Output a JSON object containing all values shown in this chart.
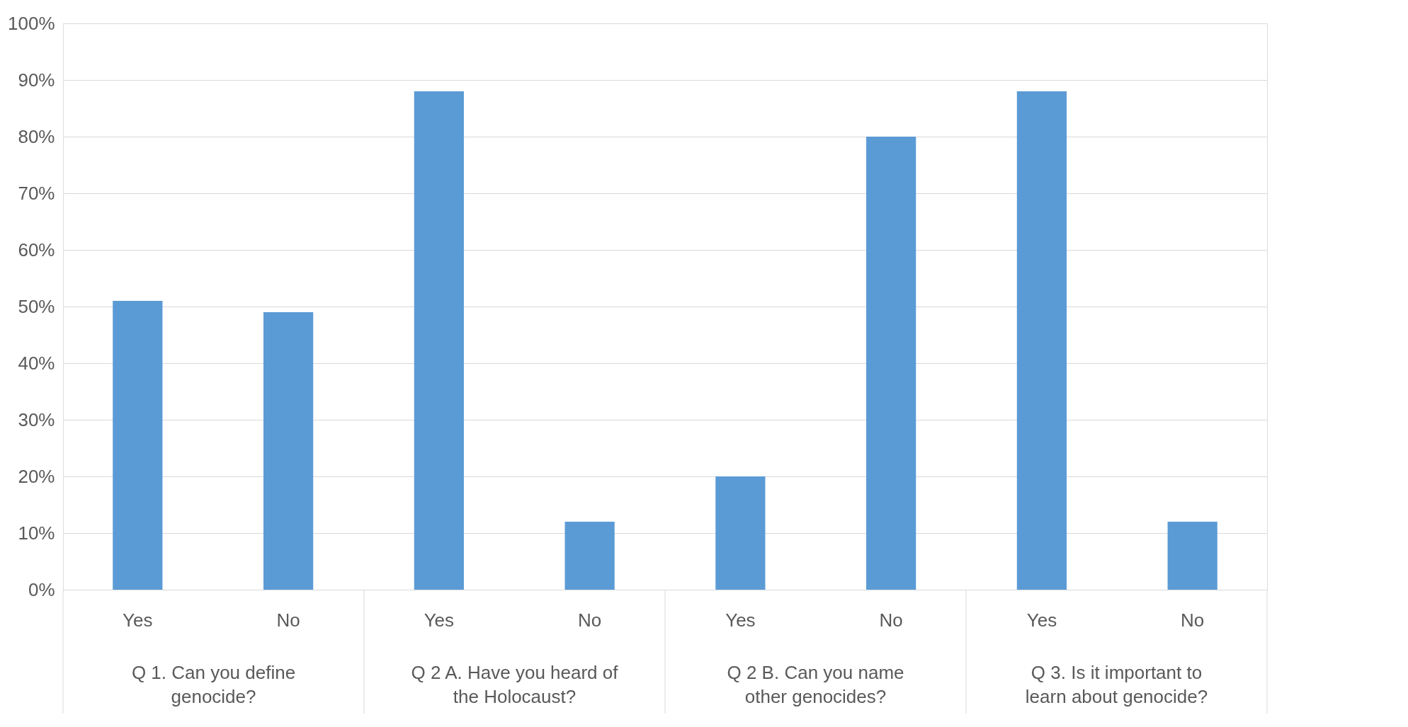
{
  "chart_data": {
    "type": "bar",
    "categories": [
      "Yes",
      "No",
      "Yes",
      "No",
      "Yes",
      "No",
      "Yes",
      "No"
    ],
    "values": [
      51,
      49,
      88,
      12,
      20,
      80,
      88,
      12
    ],
    "color": "#5b9bd5",
    "ylim": [
      0,
      100
    ],
    "yticks": [
      {
        "value": 0,
        "label": "0%"
      },
      {
        "value": 10,
        "label": "10%"
      },
      {
        "value": 20,
        "label": "20%"
      },
      {
        "value": 30,
        "label": "30%"
      },
      {
        "value": 40,
        "label": "40%"
      },
      {
        "value": 50,
        "label": "50%"
      },
      {
        "value": 60,
        "label": "60%"
      },
      {
        "value": 70,
        "label": "70%"
      },
      {
        "value": 80,
        "label": "80%"
      },
      {
        "value": 90,
        "label": "90%"
      },
      {
        "value": 100,
        "label": "100%"
      }
    ],
    "grid": "y",
    "annotations": [
      "Q 1. Can you define genocide?",
      "Q 2 A. Have you heard of the Holocaust?",
      "Q 2 B. Can you name other genocides?",
      "Q 3. Is it important to learn about genocide?"
    ]
  }
}
